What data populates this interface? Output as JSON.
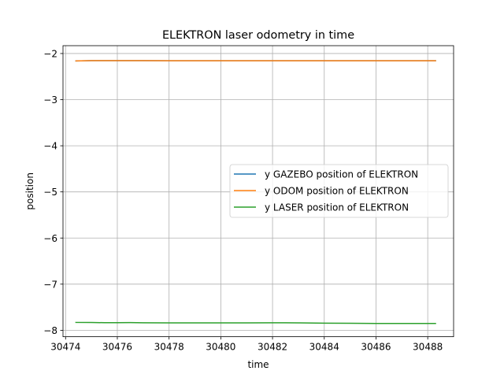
{
  "chart_data": {
    "type": "line",
    "title": "ELEKTRON laser odometry in time",
    "xlabel": "time",
    "ylabel": "position",
    "xlim": [
      30473.9,
      30489.0
    ],
    "ylim": [
      -8.14,
      -1.83
    ],
    "xticks": [
      30474,
      30476,
      30478,
      30480,
      30482,
      30484,
      30486,
      30488
    ],
    "yticks": [
      -2,
      -3,
      -4,
      -5,
      -6,
      -7,
      -8
    ],
    "grid": true,
    "legend_position": "center-right",
    "series": [
      {
        "name": "y GAZEBO position of ELEKTRON",
        "color": "#1f77b4",
        "x": [
          30474.4,
          30475.0,
          30476.0,
          30477.0,
          30478.0,
          30479.0,
          30480.0,
          30481.0,
          30482.0,
          30483.0,
          30484.0,
          30485.0,
          30486.0,
          30487.0,
          30488.0,
          30488.3
        ],
        "y": [
          -2.16,
          -2.155,
          -2.155,
          -2.155,
          -2.156,
          -2.156,
          -2.156,
          -2.156,
          -2.156,
          -2.156,
          -2.156,
          -2.157,
          -2.157,
          -2.157,
          -2.157,
          -2.157
        ]
      },
      {
        "name": "y ODOM position of ELEKTRON",
        "color": "#ff7f0e",
        "x": [
          30474.4,
          30475.0,
          30476.0,
          30477.0,
          30478.0,
          30479.0,
          30480.0,
          30481.0,
          30482.0,
          30483.0,
          30484.0,
          30485.0,
          30486.0,
          30487.0,
          30488.0,
          30488.3
        ],
        "y": [
          -2.16,
          -2.155,
          -2.155,
          -2.155,
          -2.156,
          -2.156,
          -2.156,
          -2.156,
          -2.156,
          -2.156,
          -2.156,
          -2.157,
          -2.157,
          -2.157,
          -2.157,
          -2.157
        ]
      },
      {
        "name": "y LASER position of ELEKTRON",
        "color": "#2ca02c",
        "x": [
          30474.4,
          30475.0,
          30475.5,
          30476.0,
          30476.5,
          30477.0,
          30478.0,
          30479.0,
          30480.0,
          30481.0,
          30482.0,
          30482.5,
          30483.0,
          30484.0,
          30485.0,
          30486.0,
          30487.0,
          30488.0,
          30488.3
        ],
        "y": [
          -7.83,
          -7.832,
          -7.835,
          -7.835,
          -7.834,
          -7.838,
          -7.84,
          -7.84,
          -7.84,
          -7.84,
          -7.838,
          -7.837,
          -7.84,
          -7.845,
          -7.848,
          -7.852,
          -7.852,
          -7.853,
          -7.852
        ]
      }
    ]
  }
}
